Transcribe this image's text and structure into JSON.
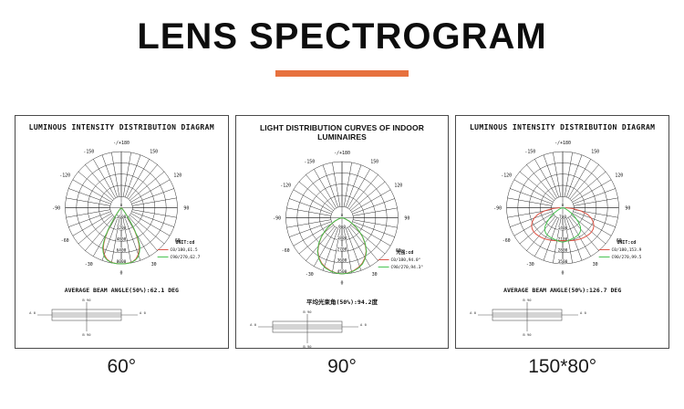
{
  "header": {
    "title": "LENS SPECTROGRAM"
  },
  "accent_color": "#e7713e",
  "polar_angle_labels": [
    {
      "angle": 180,
      "text": "-/+180"
    },
    {
      "angle": -150,
      "text": "-150"
    },
    {
      "angle": 150,
      "text": "150"
    },
    {
      "angle": -120,
      "text": "-120"
    },
    {
      "angle": 120,
      "text": "120"
    },
    {
      "angle": -90,
      "text": "-90"
    },
    {
      "angle": 90,
      "text": "90"
    },
    {
      "angle": -60,
      "text": "-60"
    },
    {
      "angle": 60,
      "text": "60"
    },
    {
      "angle": -30,
      "text": "-30"
    },
    {
      "angle": 30,
      "text": "30"
    },
    {
      "angle": 0,
      "text": "0"
    }
  ],
  "panels": [
    {
      "title": "LUMINOUS INTENSITY DISTRIBUTION DIAGRAM",
      "beam_angle_text": "AVERAGE BEAM ANGLE(50%):62.1 DEG",
      "caption": "60°",
      "legend_title": "UNIT:cd",
      "schematic": {
        "top": "B 90",
        "bottom": "B 90",
        "left": "A 0",
        "right": "A 0"
      }
    },
    {
      "title": "LIGHT DISTRIBUTION CURVES OF INDOOR LUMINAIRES",
      "beam_angle_text": "平均光束角(50%):94.2度",
      "caption": "90°",
      "legend_title": "光强:cd",
      "schematic": {
        "top": "B 90",
        "bottom": "B 90",
        "left": "A 0",
        "right": "A 0"
      }
    },
    {
      "title": "LUMINOUS INTENSITY DISTRIBUTION DIAGRAM",
      "beam_angle_text": "AVERAGE BEAM ANGLE(50%):126.7 DEG",
      "caption": "150*80°",
      "legend_title": "UNIT:cd",
      "schematic": {
        "top": "B 90",
        "bottom": "B 90",
        "left": "A 0",
        "right": "A 0"
      }
    }
  ],
  "chart_data": [
    {
      "type": "polar-line",
      "title": "LUMINOUS INTENSITY DISTRIBUTION DIAGRAM",
      "unit": "cd",
      "rings_cd": [
        1600,
        3200,
        4800,
        6400,
        8000
      ],
      "max_cd": 8000,
      "average_beam_angle_50pct_deg": 62.1,
      "series": [
        {
          "name": "C0/180",
          "label": "C0/180,61.5",
          "beam_angle_50pct_deg": 61.5,
          "color": "#dd5244",
          "points": [
            [
              -52,
              0
            ],
            [
              -48,
              100
            ],
            [
              -44,
              260
            ],
            [
              -40,
              600
            ],
            [
              -36,
              1300
            ],
            [
              -32,
              2900
            ],
            [
              -30,
              3900
            ],
            [
              -28,
              4900
            ],
            [
              -26,
              5700
            ],
            [
              -24,
              6300
            ],
            [
              -20,
              7100
            ],
            [
              -16,
              7600
            ],
            [
              -12,
              7850
            ],
            [
              -8,
              7950
            ],
            [
              -4,
              8000
            ],
            [
              0,
              8000
            ],
            [
              4,
              8000
            ],
            [
              8,
              7950
            ],
            [
              12,
              7850
            ],
            [
              16,
              7600
            ],
            [
              20,
              7100
            ],
            [
              24,
              6300
            ],
            [
              26,
              5700
            ],
            [
              28,
              4900
            ],
            [
              30,
              3900
            ],
            [
              32,
              2900
            ],
            [
              36,
              1300
            ],
            [
              40,
              600
            ],
            [
              44,
              260
            ],
            [
              48,
              100
            ],
            [
              52,
              0
            ]
          ]
        },
        {
          "name": "C90/270",
          "label": "C90/270,62.7",
          "beam_angle_50pct_deg": 62.7,
          "color": "#44c24e",
          "points": [
            [
              -46,
              0
            ],
            [
              -42,
              250
            ],
            [
              -38,
              800
            ],
            [
              -34,
              2000
            ],
            [
              -31,
              3600
            ],
            [
              -29,
              4700
            ],
            [
              -27,
              5600
            ],
            [
              -25,
              6300
            ],
            [
              -22,
              6900
            ],
            [
              -19,
              7400
            ],
            [
              -15,
              7750
            ],
            [
              -10,
              7950
            ],
            [
              -5,
              8000
            ],
            [
              0,
              8000
            ],
            [
              5,
              8000
            ],
            [
              10,
              7950
            ],
            [
              15,
              7750
            ],
            [
              19,
              7400
            ],
            [
              22,
              6900
            ],
            [
              25,
              6300
            ],
            [
              27,
              5600
            ],
            [
              29,
              4700
            ],
            [
              31,
              3600
            ],
            [
              34,
              2000
            ],
            [
              38,
              800
            ],
            [
              42,
              250
            ],
            [
              46,
              0
            ]
          ]
        }
      ]
    },
    {
      "type": "polar-line",
      "title": "LIGHT DISTRIBUTION CURVES OF INDOOR LUMINAIRES",
      "unit": "cd",
      "rings_cd": [
        900,
        1800,
        2700,
        3600,
        4500
      ],
      "max_cd": 4500,
      "average_beam_angle_50pct_deg": 94.2,
      "series": [
        {
          "name": "C0/180",
          "label": "C0/180,94.0°",
          "beam_angle_50pct_deg": 94.0,
          "color": "#dd5244",
          "points": [
            [
              -80,
              0
            ],
            [
              -75,
              120
            ],
            [
              -70,
              300
            ],
            [
              -65,
              600
            ],
            [
              -60,
              950
            ],
            [
              -55,
              1400
            ],
            [
              -50,
              1900
            ],
            [
              -47,
              2250
            ],
            [
              -42,
              2750
            ],
            [
              -36,
              3300
            ],
            [
              -30,
              3700
            ],
            [
              -24,
              4000
            ],
            [
              -18,
              4200
            ],
            [
              -12,
              4350
            ],
            [
              -6,
              4450
            ],
            [
              0,
              4500
            ],
            [
              6,
              4450
            ],
            [
              12,
              4350
            ],
            [
              18,
              4200
            ],
            [
              24,
              4000
            ],
            [
              30,
              3700
            ],
            [
              36,
              3300
            ],
            [
              42,
              2750
            ],
            [
              47,
              2250
            ],
            [
              50,
              1900
            ],
            [
              55,
              1400
            ],
            [
              60,
              950
            ],
            [
              65,
              600
            ],
            [
              70,
              300
            ],
            [
              75,
              120
            ],
            [
              80,
              0
            ]
          ]
        },
        {
          "name": "C90/270",
          "label": "C90/270,94.3°",
          "beam_angle_50pct_deg": 94.3,
          "color": "#44c24e",
          "points": [
            [
              -80,
              0
            ],
            [
              -75,
              140
            ],
            [
              -70,
              330
            ],
            [
              -65,
              640
            ],
            [
              -60,
              1000
            ],
            [
              -55,
              1450
            ],
            [
              -50,
              1950
            ],
            [
              -47,
              2280
            ],
            [
              -42,
              2800
            ],
            [
              -36,
              3350
            ],
            [
              -30,
              3750
            ],
            [
              -24,
              4050
            ],
            [
              -18,
              4250
            ],
            [
              -12,
              4380
            ],
            [
              -6,
              4470
            ],
            [
              0,
              4500
            ],
            [
              6,
              4470
            ],
            [
              12,
              4380
            ],
            [
              18,
              4250
            ],
            [
              24,
              4050
            ],
            [
              30,
              3750
            ],
            [
              36,
              3350
            ],
            [
              42,
              2800
            ],
            [
              47,
              2280
            ],
            [
              50,
              1950
            ],
            [
              55,
              1450
            ],
            [
              60,
              1000
            ],
            [
              65,
              640
            ],
            [
              70,
              330
            ],
            [
              75,
              140
            ],
            [
              80,
              0
            ]
          ]
        }
      ]
    },
    {
      "type": "polar-line",
      "title": "LUMINOUS INTENSITY DISTRIBUTION DIAGRAM",
      "unit": "cd",
      "rings_cd": [
        700,
        1400,
        2100,
        2800,
        3500
      ],
      "max_cd": 3500,
      "average_beam_angle_50pct_deg": 126.7,
      "series": [
        {
          "name": "C0/180",
          "label": "C0/180,153.9",
          "beam_angle_50pct_deg": 153.9,
          "color": "#dd5244",
          "points": [
            [
              -90,
              180
            ],
            [
              -85,
              650
            ],
            [
              -80,
              1150
            ],
            [
              -75,
              1600
            ],
            [
              -70,
              1900
            ],
            [
              -65,
              2100
            ],
            [
              -60,
              2250
            ],
            [
              -55,
              2320
            ],
            [
              -50,
              2350
            ],
            [
              -45,
              2340
            ],
            [
              -40,
              2310
            ],
            [
              -35,
              2280
            ],
            [
              -30,
              2240
            ],
            [
              -25,
              2200
            ],
            [
              -20,
              2160
            ],
            [
              -15,
              2120
            ],
            [
              -10,
              2090
            ],
            [
              -5,
              2060
            ],
            [
              0,
              2050
            ],
            [
              5,
              2060
            ],
            [
              10,
              2090
            ],
            [
              15,
              2120
            ],
            [
              20,
              2160
            ],
            [
              25,
              2200
            ],
            [
              30,
              2240
            ],
            [
              35,
              2280
            ],
            [
              40,
              2310
            ],
            [
              45,
              2340
            ],
            [
              50,
              2350
            ],
            [
              55,
              2320
            ],
            [
              60,
              2250
            ],
            [
              65,
              2100
            ],
            [
              70,
              1900
            ],
            [
              75,
              1600
            ],
            [
              80,
              1150
            ],
            [
              85,
              650
            ],
            [
              90,
              180
            ]
          ]
        },
        {
          "name": "C90/270",
          "label": "C90/270,99.5",
          "beam_angle_50pct_deg": 99.5,
          "color": "#44c24e",
          "points": [
            [
              -78,
              0
            ],
            [
              -73,
              80
            ],
            [
              -68,
              200
            ],
            [
              -63,
              380
            ],
            [
              -58,
              620
            ],
            [
              -53,
              950
            ],
            [
              -48,
              1300
            ],
            [
              -43,
              1620
            ],
            [
              -38,
              1820
            ],
            [
              -33,
              1920
            ],
            [
              -28,
              1970
            ],
            [
              -23,
              2000
            ],
            [
              -18,
              2020
            ],
            [
              -13,
              2050
            ],
            [
              -8,
              2090
            ],
            [
              -4,
              2120
            ],
            [
              0,
              2150
            ],
            [
              4,
              2120
            ],
            [
              8,
              2090
            ],
            [
              13,
              2050
            ],
            [
              18,
              2020
            ],
            [
              23,
              2000
            ],
            [
              28,
              1970
            ],
            [
              33,
              1920
            ],
            [
              38,
              1820
            ],
            [
              43,
              1620
            ],
            [
              48,
              1300
            ],
            [
              53,
              950
            ],
            [
              58,
              620
            ],
            [
              63,
              380
            ],
            [
              68,
              200
            ],
            [
              73,
              80
            ],
            [
              78,
              0
            ]
          ]
        }
      ]
    }
  ]
}
